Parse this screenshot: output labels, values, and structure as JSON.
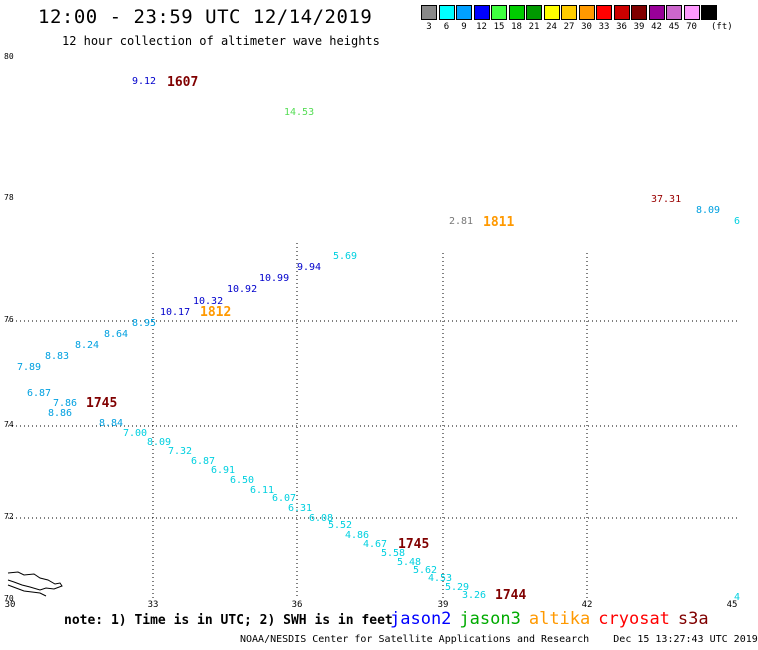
{
  "title": "12:00 - 23:59 UTC 12/14/2019",
  "subtitle": "12 hour collection of altimeter wave heights",
  "legend": {
    "unit": "(ft)",
    "items": [
      {
        "label": "3",
        "color": "#888888"
      },
      {
        "label": "6",
        "color": "#00ffff"
      },
      {
        "label": "9",
        "color": "#00a0ff"
      },
      {
        "label": "12",
        "color": "#0000ff"
      },
      {
        "label": "15",
        "color": "#40ff40"
      },
      {
        "label": "18",
        "color": "#00cc00"
      },
      {
        "label": "21",
        "color": "#009900"
      },
      {
        "label": "24",
        "color": "#ffff00"
      },
      {
        "label": "27",
        "color": "#ffcc00"
      },
      {
        "label": "30",
        "color": "#ff9900"
      },
      {
        "label": "33",
        "color": "#ff0000"
      },
      {
        "label": "36",
        "color": "#cc0000"
      },
      {
        "label": "39",
        "color": "#800000"
      },
      {
        "label": "42",
        "color": "#990099"
      },
      {
        "label": "45",
        "color": "#cc66cc"
      },
      {
        "label": "70",
        "color": "#ff99ff"
      },
      {
        "label": "",
        "color": "#000000"
      }
    ]
  },
  "axes": {
    "lat_ticks": [
      "80",
      "78",
      "76",
      "74",
      "72",
      "70"
    ],
    "lon_ticks": [
      "30",
      "33",
      "36",
      "39",
      "42",
      "45"
    ]
  },
  "labels": [
    {
      "text": "9.12",
      "color": "#0000cc"
    },
    {
      "text": "14.53",
      "color": "#55dd55"
    },
    {
      "text": "37.31",
      "color": "#990000"
    },
    {
      "text": "8.09",
      "color": "#00a0e0"
    },
    {
      "text": "6",
      "color": "#00d0e0"
    },
    {
      "text": "2.81",
      "color": "#777777"
    },
    {
      "text": "5.69",
      "color": "#00d0e0"
    },
    {
      "text": "9.94",
      "color": "#0000cc"
    },
    {
      "text": "10.99",
      "color": "#0000cc"
    },
    {
      "text": "10.92",
      "color": "#0000cc"
    },
    {
      "text": "10.32",
      "color": "#0000cc"
    },
    {
      "text": "10.17",
      "color": "#0000cc"
    },
    {
      "text": "8.95",
      "color": "#00a0e0"
    },
    {
      "text": "8.64",
      "color": "#00a0e0"
    },
    {
      "text": "8.24",
      "color": "#00a0e0"
    },
    {
      "text": "8.83",
      "color": "#00a0e0"
    },
    {
      "text": "7.89",
      "color": "#00a0e0"
    },
    {
      "text": "6.87",
      "color": "#00a0e0"
    },
    {
      "text": "7.86",
      "color": "#00a0e0"
    },
    {
      "text": "8.86",
      "color": "#00a0e0"
    },
    {
      "text": "8.84",
      "color": "#00a0e0"
    },
    {
      "text": "7.00",
      "color": "#00d0e0"
    },
    {
      "text": "8.09",
      "color": "#00d0e0"
    },
    {
      "text": "7.32",
      "color": "#00d0e0"
    },
    {
      "text": "6.87",
      "color": "#00d0e0"
    },
    {
      "text": "6.91",
      "color": "#00d0e0"
    },
    {
      "text": "6.50",
      "color": "#00d0e0"
    },
    {
      "text": "6.11",
      "color": "#00d0e0"
    },
    {
      "text": "6.07",
      "color": "#00d0e0"
    },
    {
      "text": "6.31",
      "color": "#00d0e0"
    },
    {
      "text": "6.08",
      "color": "#00d0e0"
    },
    {
      "text": "5.52",
      "color": "#00d0e0"
    },
    {
      "text": "4.86",
      "color": "#00d0e0"
    },
    {
      "text": "4.67",
      "color": "#00d0e0"
    },
    {
      "text": "5.58",
      "color": "#00d0e0"
    },
    {
      "text": "5.48",
      "color": "#00d0e0"
    },
    {
      "text": "5.62",
      "color": "#00d0e0"
    },
    {
      "text": "4.53",
      "color": "#00d0e0"
    },
    {
      "text": "5.29",
      "color": "#00d0e0"
    },
    {
      "text": "3.26",
      "color": "#00d0e0"
    },
    {
      "text": "4",
      "color": "#00d0e0"
    }
  ],
  "times": [
    {
      "text": "1607",
      "color": "#800000"
    },
    {
      "text": "1811",
      "color": "#ff9900"
    },
    {
      "text": "1812",
      "color": "#ff9900"
    },
    {
      "text": "1745",
      "color": "#800000"
    },
    {
      "text": "1745",
      "color": "#800000"
    },
    {
      "text": "1744",
      "color": "#800000"
    }
  ],
  "note": "note: 1) Time is in UTC; 2) SWH is in feet",
  "satellites": [
    {
      "name": "jason2",
      "color": "#0000ff"
    },
    {
      "name": "jason3",
      "color": "#00aa00"
    },
    {
      "name": "altika",
      "color": "#ff9900"
    },
    {
      "name": "cryosat",
      "color": "#ff0000"
    },
    {
      "name": "s3a",
      "color": "#800000"
    }
  ],
  "credit": "NOAA/NESDIS Center for Satellite Applications and Research    Dec 15 13:27:43 UTC 2019"
}
